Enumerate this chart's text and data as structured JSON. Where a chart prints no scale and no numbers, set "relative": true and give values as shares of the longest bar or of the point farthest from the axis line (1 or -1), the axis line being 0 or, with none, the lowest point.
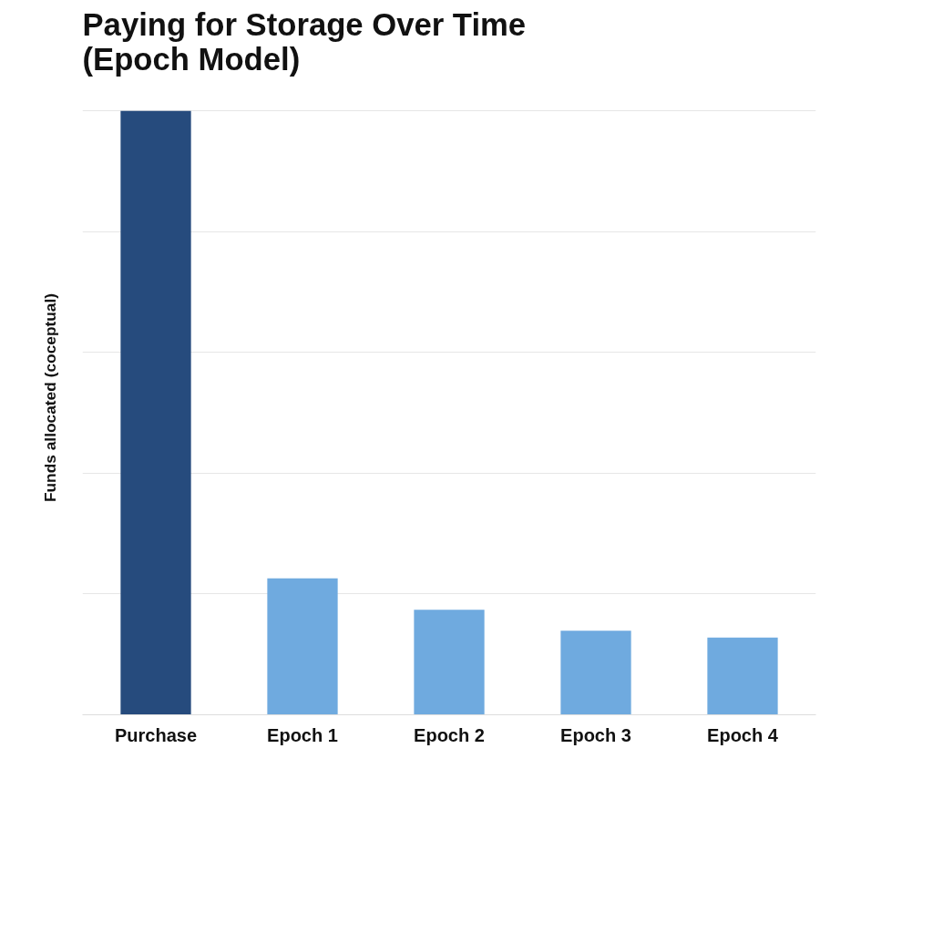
{
  "chart_data": {
    "type": "bar",
    "title": "Paying for Storage Over Time\n(Epoch Model)",
    "ylabel": "Funds allocated (coceptual)",
    "categories": [
      "Purchase",
      "Epoch 1",
      "Epoch 2",
      "Epoch 3",
      "Epoch 4"
    ],
    "values": [
      1,
      0.226,
      0.174,
      0.139,
      0.128
    ],
    "colors": [
      "#264b7d",
      "#6faadf",
      "#6faadf",
      "#6faadf",
      "#6faadf"
    ],
    "relative": true,
    "grid": "y"
  }
}
